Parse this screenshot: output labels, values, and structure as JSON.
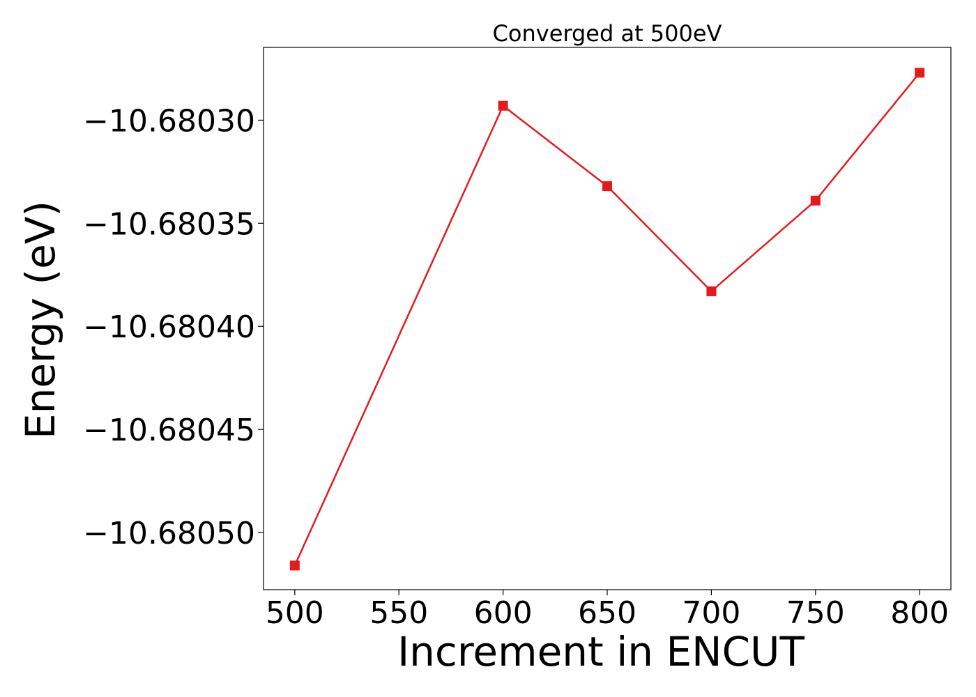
{
  "chart_data": {
    "type": "line",
    "title": "Converged at 500eV",
    "xlabel": "Increment in ENCUT",
    "ylabel": "Energy (eV)",
    "x": [
      500,
      600,
      650,
      700,
      750,
      800
    ],
    "series": [
      {
        "values": [
          -10.680516,
          -10.680293,
          -10.680332,
          -10.680383,
          -10.680339,
          -10.680277
        ],
        "color": "#e41a1c",
        "marker": "square"
      }
    ],
    "xticks": [
      500,
      550,
      600,
      650,
      700,
      750,
      800
    ],
    "xtick_labels": [
      "500",
      "550",
      "600",
      "650",
      "700",
      "750",
      "800"
    ],
    "yticks": [
      -10.6803,
      -10.68035,
      -10.6804,
      -10.68045,
      -10.6805
    ],
    "ytick_labels": [
      "−10.68030",
      "−10.68035",
      "−10.68040",
      "−10.68045",
      "−10.68050"
    ],
    "xlim": [
      485,
      815
    ],
    "ylim": [
      -10.6805277,
      -10.6802647
    ],
    "grid": false,
    "legend": "none"
  }
}
